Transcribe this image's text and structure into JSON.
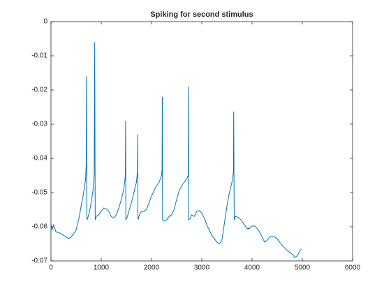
{
  "chart_data": {
    "type": "line",
    "title": "Spiking for second stimulus",
    "color": "#0072bd",
    "xlim": [
      0,
      6000
    ],
    "xticks": [
      0,
      1000,
      2000,
      3000,
      4000,
      5000,
      6000
    ],
    "ylim": [
      -0.07,
      0
    ],
    "yticks": [
      0,
      -0.01,
      -0.02,
      -0.03,
      -0.04,
      -0.05,
      -0.06,
      -0.07
    ],
    "grid": false,
    "x": [
      0,
      20,
      50,
      100,
      200,
      300,
      350,
      400,
      450,
      500,
      550,
      600,
      650,
      690,
      700,
      705,
      712,
      720,
      760,
      800,
      840,
      860,
      870,
      880,
      900,
      950,
      1000,
      1050,
      1100,
      1150,
      1200,
      1250,
      1300,
      1350,
      1400,
      1450,
      1480,
      1485,
      1490,
      1520,
      1560,
      1600,
      1650,
      1700,
      1720,
      1725,
      1730,
      1760,
      1800,
      1850,
      1900,
      1950,
      2000,
      2050,
      2100,
      2150,
      2200,
      2210,
      2215,
      2220,
      2260,
      2300,
      2350,
      2400,
      2450,
      2500,
      2550,
      2600,
      2650,
      2700,
      2730,
      2735,
      2740,
      2770,
      2800,
      2850,
      2900,
      2950,
      3000,
      3050,
      3100,
      3150,
      3200,
      3250,
      3300,
      3350,
      3400,
      3450,
      3500,
      3550,
      3600,
      3630,
      3635,
      3645,
      3670,
      3720,
      3780,
      3850,
      3900,
      3950,
      4000,
      4050,
      4100,
      4150,
      4200,
      4250,
      4300,
      4350,
      4400,
      4450,
      4500,
      4550,
      4600,
      4700,
      4800,
      4850,
      4900,
      4950,
      4990
    ],
    "values": [
      -0.059,
      -0.061,
      -0.0595,
      -0.0615,
      -0.062,
      -0.063,
      -0.0635,
      -0.063,
      -0.062,
      -0.061,
      -0.058,
      -0.054,
      -0.05,
      -0.046,
      -0.042,
      -0.016,
      -0.057,
      -0.058,
      -0.056,
      -0.053,
      -0.049,
      -0.045,
      -0.006,
      -0.058,
      -0.057,
      -0.0565,
      -0.0555,
      -0.0545,
      -0.0548,
      -0.0555,
      -0.057,
      -0.0575,
      -0.0565,
      -0.0545,
      -0.052,
      -0.049,
      -0.045,
      -0.029,
      -0.058,
      -0.057,
      -0.055,
      -0.053,
      -0.05,
      -0.047,
      -0.044,
      -0.033,
      -0.058,
      -0.0565,
      -0.0555,
      -0.0555,
      -0.055,
      -0.053,
      -0.051,
      -0.0495,
      -0.048,
      -0.047,
      -0.045,
      -0.043,
      -0.022,
      -0.058,
      -0.0583,
      -0.058,
      -0.057,
      -0.0565,
      -0.055,
      -0.052,
      -0.0495,
      -0.048,
      -0.047,
      -0.046,
      -0.045,
      -0.019,
      -0.058,
      -0.0575,
      -0.0565,
      -0.057,
      -0.0555,
      -0.0553,
      -0.056,
      -0.0575,
      -0.0595,
      -0.061,
      -0.0625,
      -0.0635,
      -0.0645,
      -0.065,
      -0.064,
      -0.059,
      -0.054,
      -0.05,
      -0.047,
      -0.044,
      -0.0263,
      -0.058,
      -0.057,
      -0.0572,
      -0.058,
      -0.0595,
      -0.0605,
      -0.0605,
      -0.0598,
      -0.0598,
      -0.0605,
      -0.0615,
      -0.063,
      -0.0645,
      -0.064,
      -0.063,
      -0.0628,
      -0.063,
      -0.0635,
      -0.0645,
      -0.0655,
      -0.067,
      -0.068,
      -0.069,
      -0.0685,
      -0.067,
      -0.0665
    ]
  }
}
